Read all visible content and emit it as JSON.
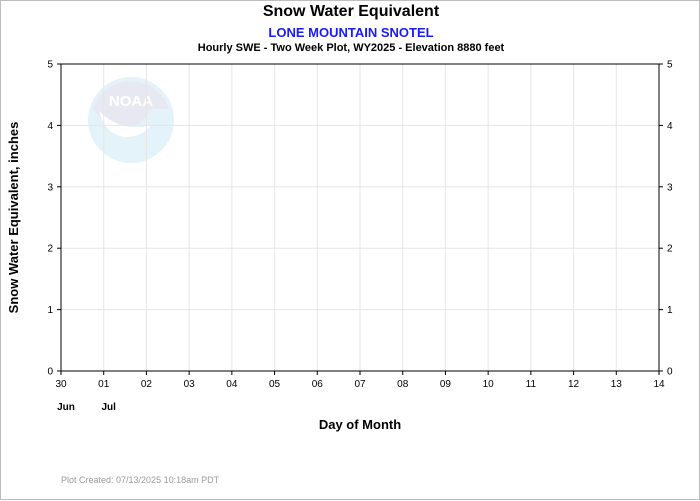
{
  "chart_data": {
    "type": "line",
    "title": "Snow Water Equivalent",
    "subtitle": "LONE MOUNTAIN SNOTEL",
    "subtitle2": "Hourly SWE - Two Week Plot, WY2025 -  Elevation 8880 feet",
    "xlabel": "Day of Month",
    "ylabel": "Snow Water Equivalent, inches",
    "x_ticks": [
      "30",
      "01",
      "02",
      "03",
      "04",
      "05",
      "06",
      "07",
      "08",
      "09",
      "10",
      "11",
      "12",
      "13",
      "14"
    ],
    "x_month_labels": [
      {
        "tick_index": 0,
        "label": "Jun"
      },
      {
        "tick_index": 1,
        "label": "Jul"
      }
    ],
    "ylim": [
      0,
      5
    ],
    "y_ticks": [
      0,
      1,
      2,
      3,
      4,
      5
    ],
    "grid": true,
    "series": [],
    "watermark": "noaa-logo"
  },
  "footer": {
    "created": "Plot Created: 07/13/2025 10:18am PDT"
  },
  "colors": {
    "subtitle": "#1a1aff",
    "grid": "#e6e6e6",
    "axis": "#000000",
    "footer": "#9a9a9a"
  }
}
